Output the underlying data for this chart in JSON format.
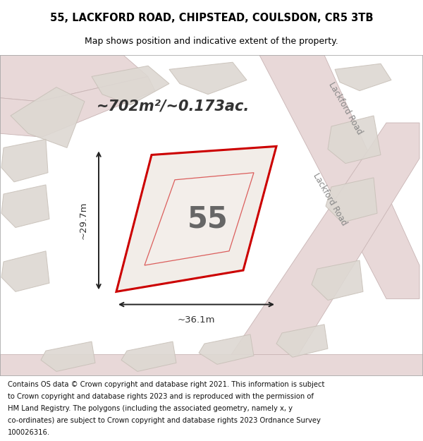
{
  "title_line1": "55, LACKFORD ROAD, CHIPSTEAD, COULSDON, CR5 3TB",
  "title_line2": "Map shows position and indicative extent of the property.",
  "footer_lines": [
    "Contains OS data © Crown copyright and database right 2021. This information is subject",
    "to Crown copyright and database rights 2023 and is reproduced with the permission of",
    "HM Land Registry. The polygons (including the associated geometry, namely x, y",
    "co-ordinates) are subject to Crown copyright and database rights 2023 Ordnance Survey",
    "100026316."
  ],
  "area_label": "~702m²/~0.173ac.",
  "plot_number": "55",
  "dim_width": "~36.1m",
  "dim_height": "~29.7m",
  "map_bg": "#f2ede8",
  "highlight_poly_color": "#cc0000",
  "road_label": "Lackford Road",
  "title_fontsize": 10.5,
  "subtitle_fontsize": 9,
  "footer_fontsize": 7.2,
  "bg_block_color": "#ddd8d2",
  "bg_block_edge": "#c8c0b8",
  "road_fill": "#e8d8d8",
  "road_edge": "#c8b4b4"
}
